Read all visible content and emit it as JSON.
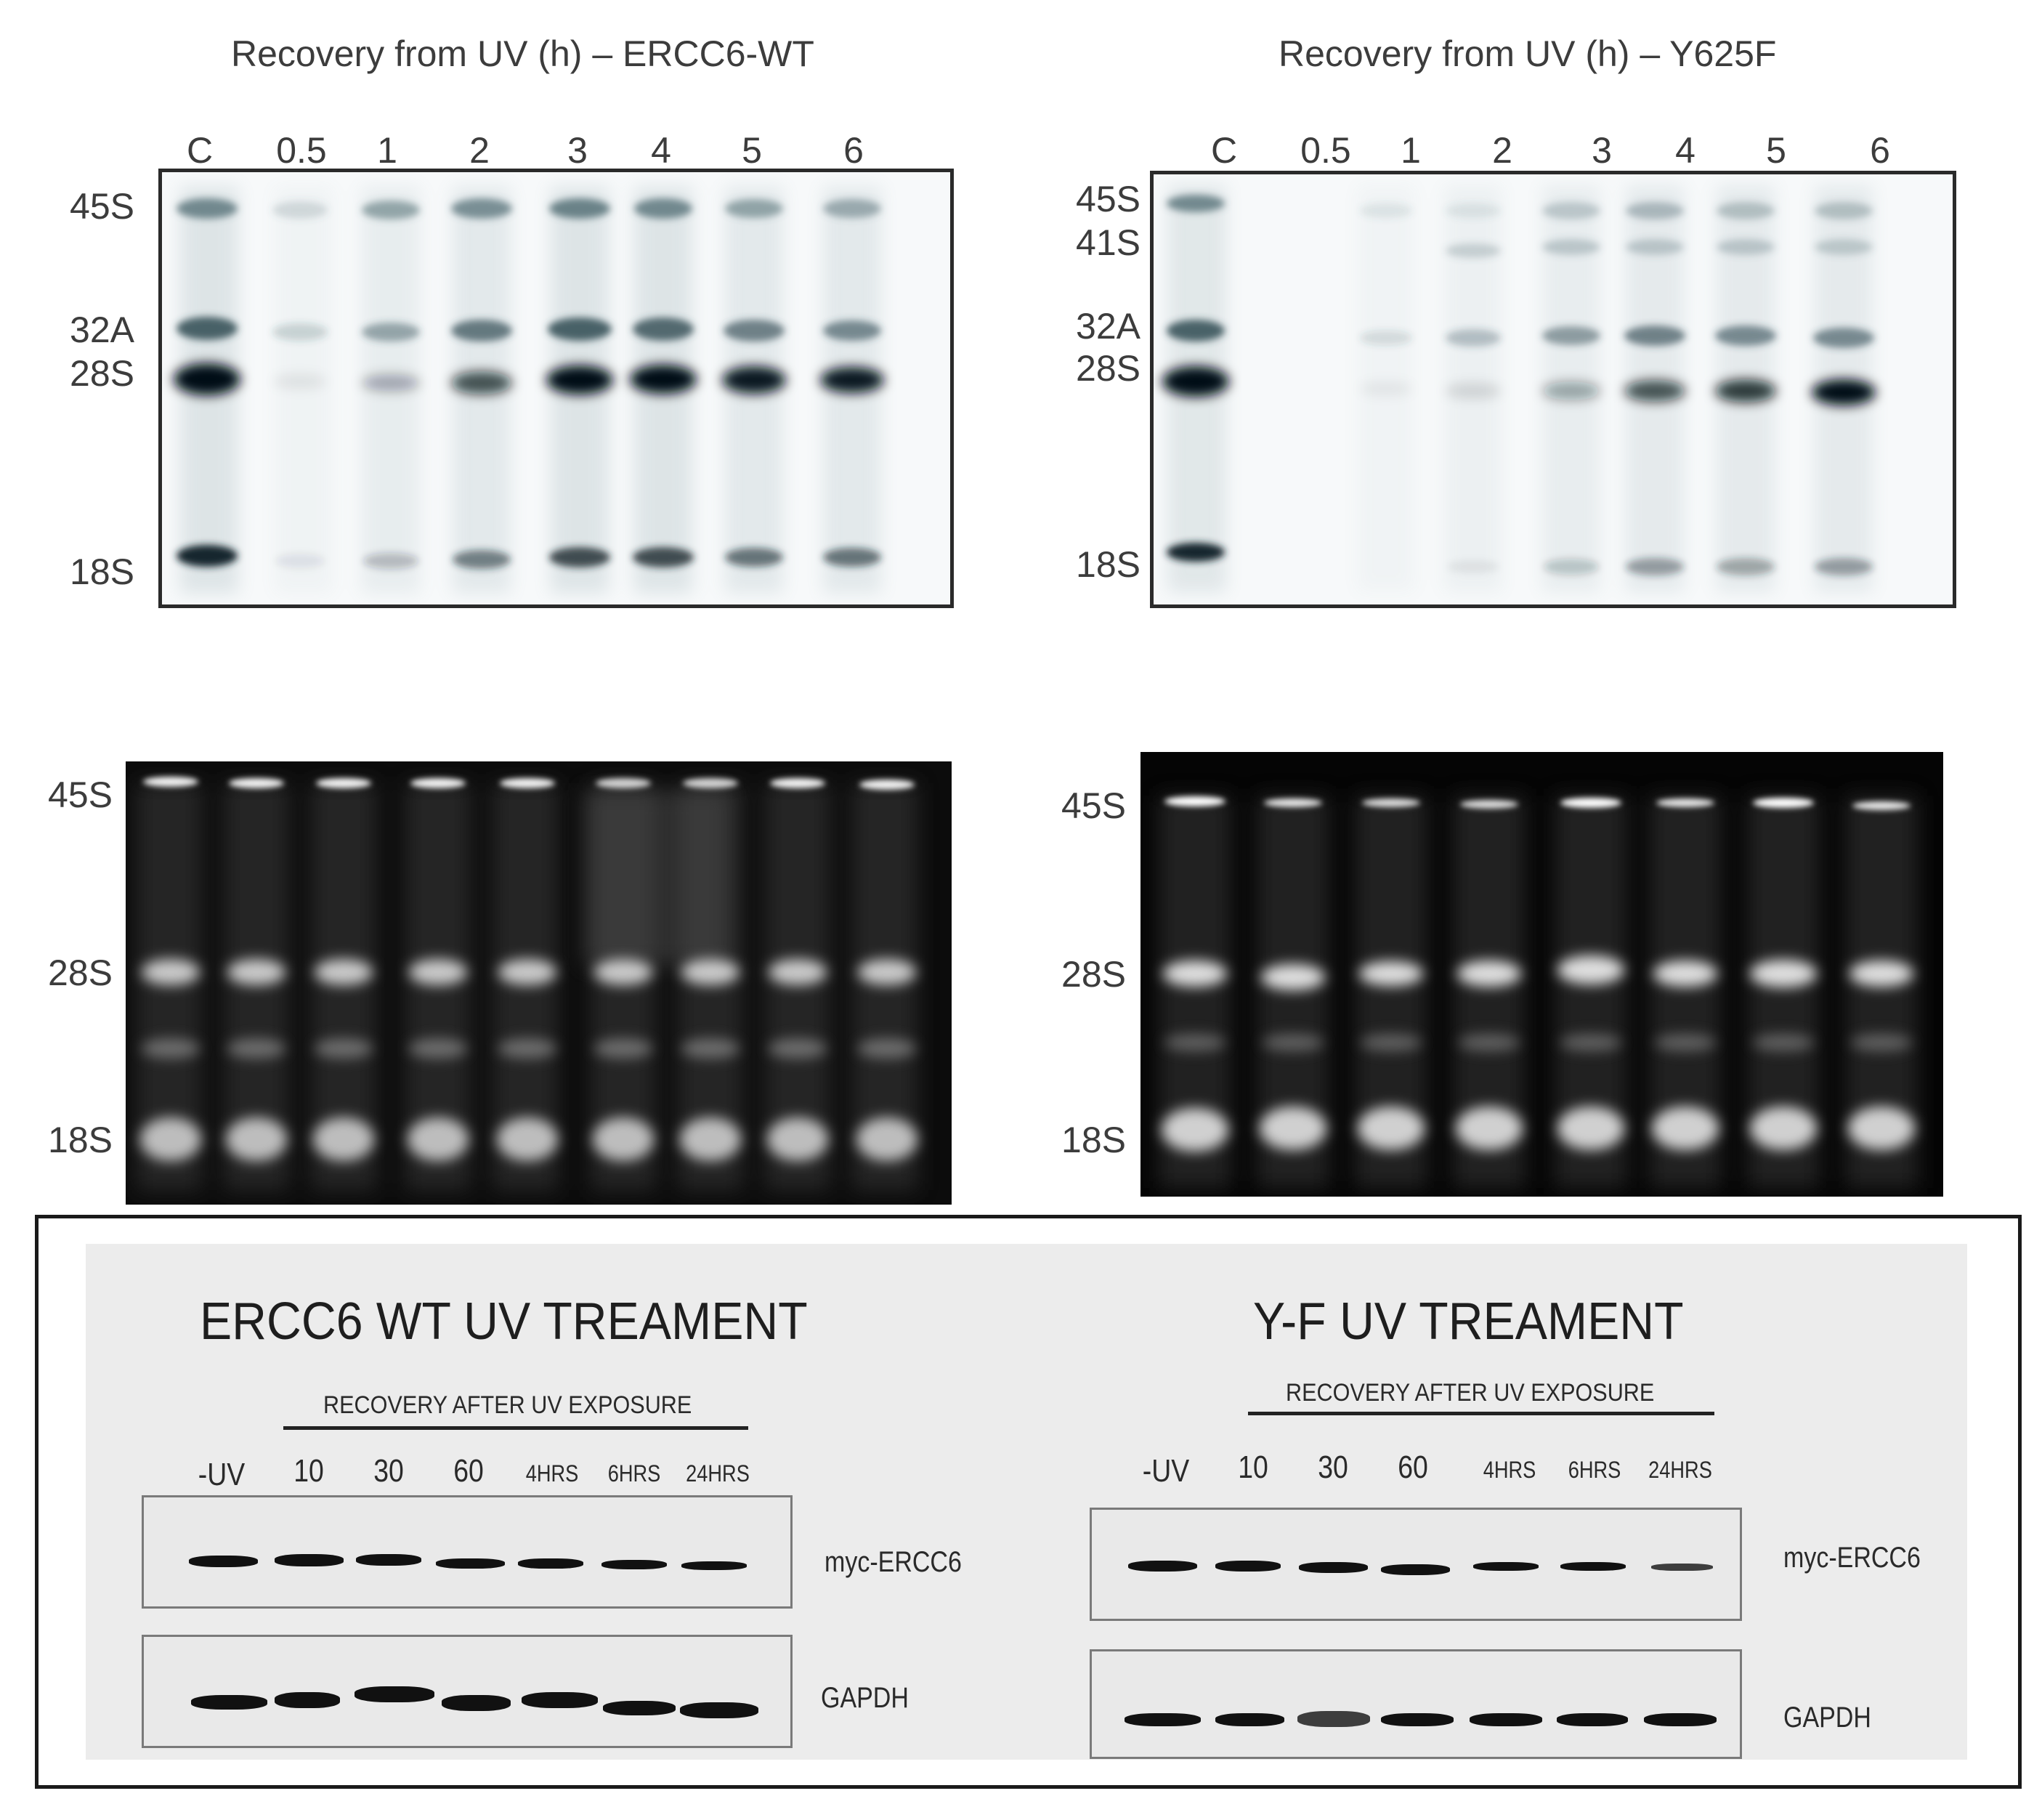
{
  "top_left": {
    "title": "Recovery from UV (h) – ERCC6-WT",
    "lanes": [
      "C",
      "0.5",
      "1",
      "2",
      "3",
      "4",
      "5",
      "6"
    ],
    "bands": [
      "45S",
      "32A",
      "28S",
      "18S"
    ]
  },
  "top_right": {
    "title": "Recovery from UV (h) – Y625F",
    "lanes": [
      "C",
      "0.5",
      "1",
      "2",
      "3",
      "4",
      "5",
      "6"
    ],
    "bands": [
      "45S",
      "41S",
      "32A",
      "28S",
      "18S"
    ]
  },
  "gel_left": {
    "bands": [
      "45S",
      "28S",
      "18S"
    ]
  },
  "gel_right": {
    "bands": [
      "45S",
      "28S",
      "18S"
    ]
  },
  "western_left": {
    "title": "ERCC6 WT UV TREAMENT",
    "subtitle": "RECOVERY AFTER UV EXPOSURE",
    "lanes": [
      "-UV",
      "10",
      "30",
      "60",
      "4HRS",
      "6HRS",
      "24HRS"
    ],
    "strip_labels": [
      "myc-ERCC6",
      "GAPDH"
    ]
  },
  "western_right": {
    "title": "Y-F UV TREAMENT",
    "subtitle": "RECOVERY AFTER UV EXPOSURE",
    "lanes": [
      "-UV",
      "10",
      "30",
      "60",
      "4HRS",
      "6HRS",
      "24HRS"
    ],
    "strip_labels": [
      "myc-ERCC6",
      "GAPDH"
    ]
  }
}
